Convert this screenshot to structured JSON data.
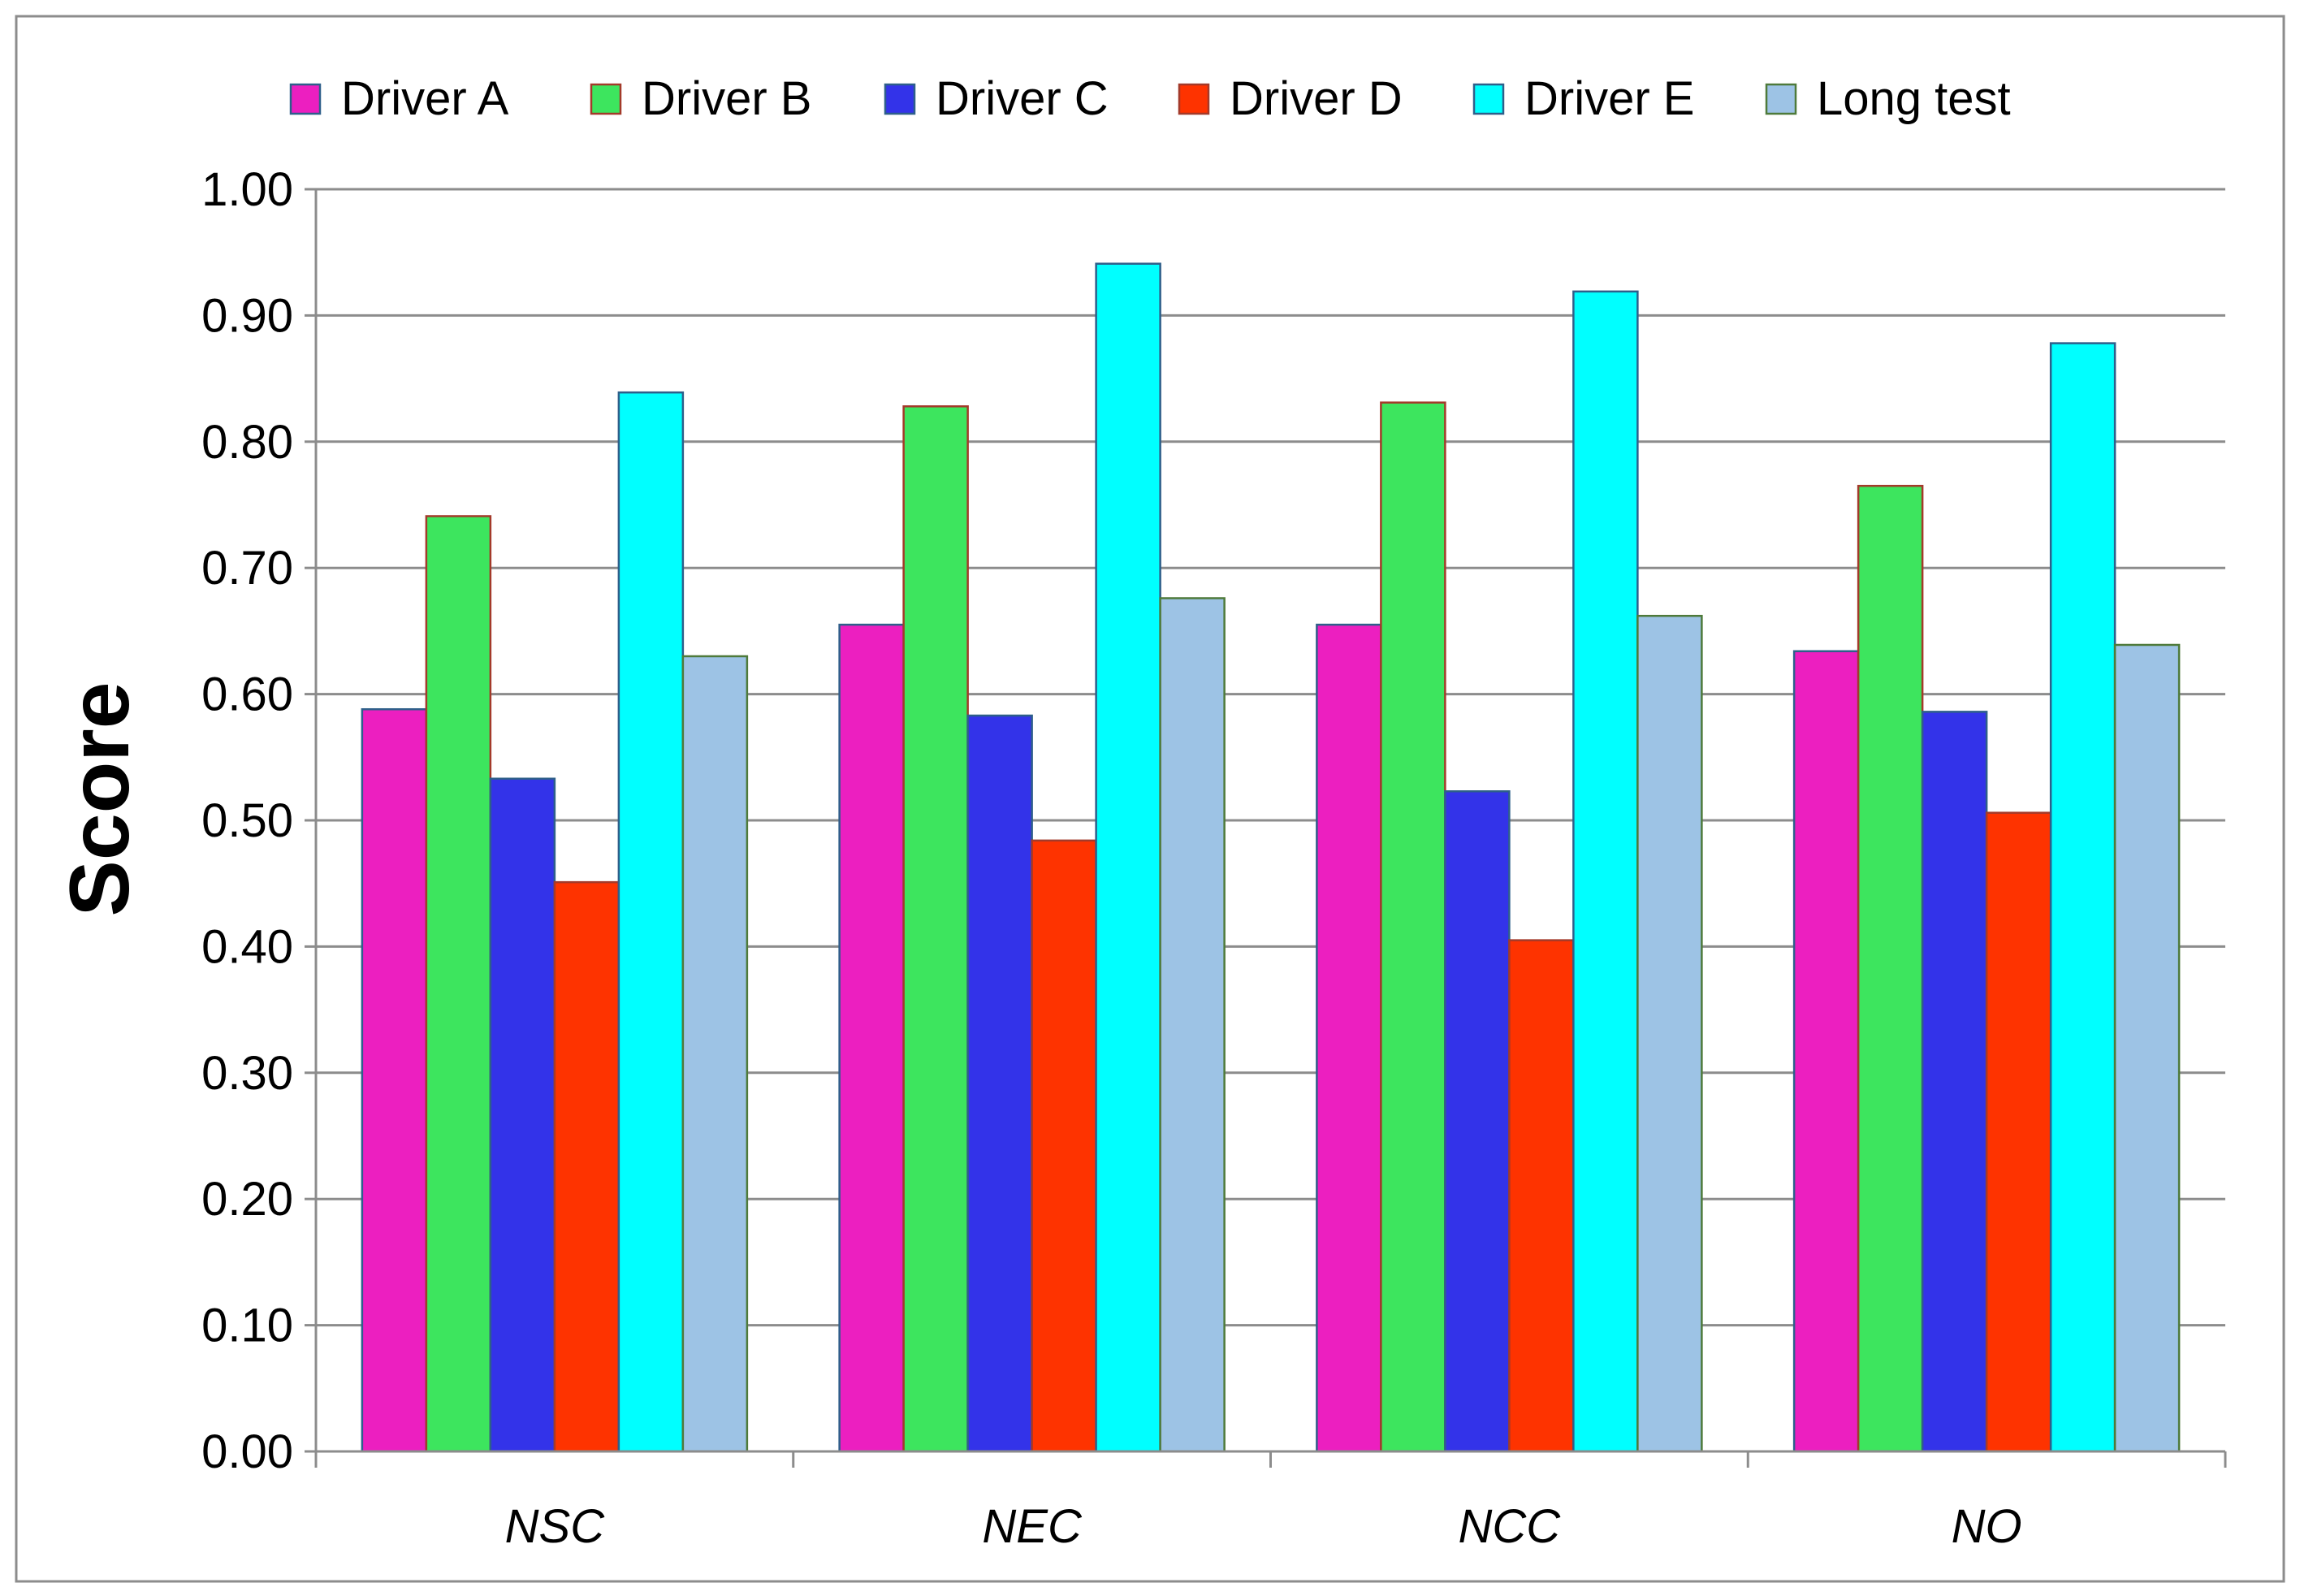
{
  "chart_data": {
    "type": "bar",
    "title": "",
    "xlabel": "",
    "ylabel": "Score",
    "ylim": [
      0,
      1.0
    ],
    "ytick_step": 0.1,
    "ytick_labels": [
      "0.00",
      "0.10",
      "0.20",
      "0.30",
      "0.40",
      "0.50",
      "0.60",
      "0.70",
      "0.80",
      "0.90",
      "1.00"
    ],
    "grid": true,
    "legend_position": "top",
    "categories": [
      "NSC",
      "NEC",
      "NCC",
      "NO"
    ],
    "series": [
      {
        "name": "Driver A",
        "color": "#EC1FC0",
        "edge": "#2E5F8A",
        "values": [
          0.588,
          0.655,
          0.655,
          0.634
        ]
      },
      {
        "name": "Driver B",
        "color": "#3DE55E",
        "edge": "#A33A2A",
        "values": [
          0.741,
          0.828,
          0.831,
          0.765
        ]
      },
      {
        "name": "Driver C",
        "color": "#3333E9",
        "edge": "#2E5F8A",
        "values": [
          0.533,
          0.583,
          0.523,
          0.586
        ]
      },
      {
        "name": "Driver D",
        "color": "#FE3300",
        "edge": "#A33A2A",
        "values": [
          0.451,
          0.484,
          0.405,
          0.506
        ]
      },
      {
        "name": "Driver E",
        "color": "#00FFFF",
        "edge": "#2E5F8A",
        "values": [
          0.839,
          0.941,
          0.919,
          0.878
        ]
      },
      {
        "name": "Long test",
        "color": "#9DC3E5",
        "edge": "#4E7A3A",
        "values": [
          0.63,
          0.676,
          0.662,
          0.639
        ]
      }
    ]
  }
}
